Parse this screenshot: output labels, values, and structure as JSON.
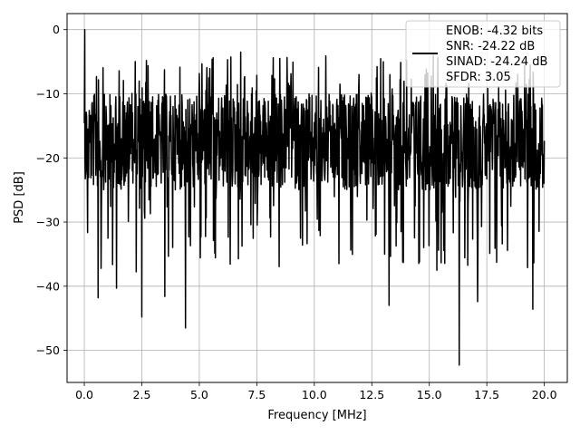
{
  "chart_data": {
    "type": "line",
    "title": "",
    "xlabel": "Frequency [MHz]",
    "ylabel": "PSD [dB]",
    "xlim": [
      -0.75,
      21.0
    ],
    "ylim": [
      -55.0,
      2.5
    ],
    "xticks": [
      0.0,
      2.5,
      5.0,
      7.5,
      10.0,
      12.5,
      15.0,
      17.5,
      20.0
    ],
    "xtick_labels": [
      "0.0",
      "2.5",
      "5.0",
      "7.5",
      "10.0",
      "12.5",
      "15.0",
      "17.5",
      "20.0"
    ],
    "yticks": [
      0,
      -10,
      -20,
      -30,
      -40,
      -50
    ],
    "ytick_labels": [
      "0",
      "−10",
      "−20",
      "−30",
      "−40",
      "−50"
    ],
    "grid": true,
    "legend_position": "top-right",
    "line_color": "#000000",
    "legend": {
      "lines": [
        "ENOB: -4.32 bits",
        "SNR: -24.22 dB",
        "SINAD: -24.24 dB",
        "SFDR: 3.05"
      ]
    },
    "series": [
      {
        "x_range": [
          0.0,
          20.0
        ],
        "notable_points": [
          {
            "x": 0.02,
            "y": 0.0
          },
          {
            "x": 0.6,
            "y": -41.8
          },
          {
            "x": 1.4,
            "y": -40.3
          },
          {
            "x": 2.5,
            "y": -44.8
          },
          {
            "x": 3.5,
            "y": -41.6
          },
          {
            "x": 4.4,
            "y": -46.5
          },
          {
            "x": 13.25,
            "y": -43.0
          },
          {
            "x": 16.3,
            "y": -52.3
          },
          {
            "x": 17.1,
            "y": -42.4
          },
          {
            "x": 19.5,
            "y": -43.6
          },
          {
            "x": 6.8,
            "y": -3.5
          },
          {
            "x": 8.5,
            "y": -4.5
          },
          {
            "x": 13.0,
            "y": -5.0
          }
        ],
        "typical_upper": -10,
        "typical_lower": -25
      }
    ]
  }
}
